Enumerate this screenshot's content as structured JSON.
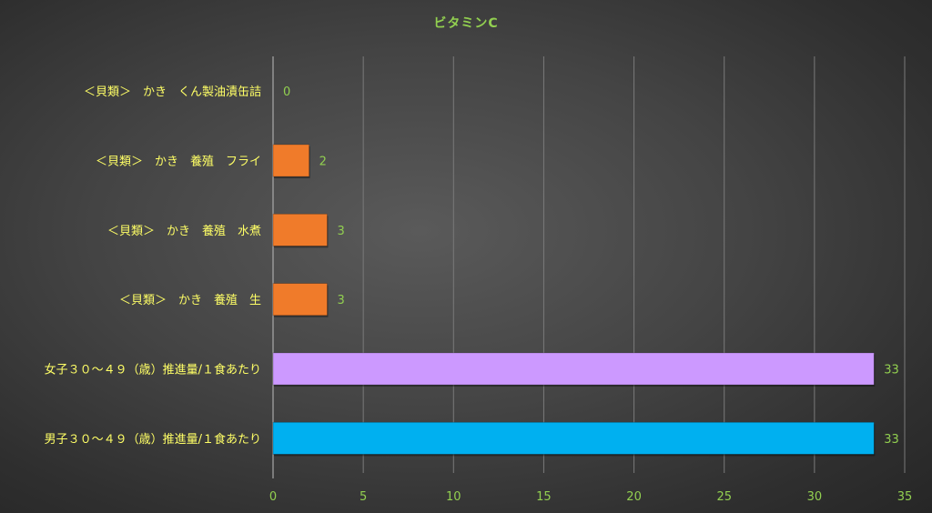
{
  "chart_data": {
    "type": "bar",
    "orientation": "horizontal",
    "title": "ビタミンC",
    "categories": [
      "＜貝類＞　かき　くん製油漬缶詰",
      "＜貝類＞　かき　養殖　フライ",
      "＜貝類＞　かき　養殖　水煮",
      "＜貝類＞　かき　養殖　生",
      "女子３０～４９（歳）推進量/１食あたり",
      "男子３０～４９（歳）推進量/１食あたり"
    ],
    "values": [
      0,
      2,
      3,
      3,
      33.3,
      33.3
    ],
    "data_labels": [
      "0",
      "2",
      "3",
      "3",
      "33",
      "33"
    ],
    "bar_colors": [
      "#F07B2A",
      "#F07B2A",
      "#F07B2A",
      "#F07B2A",
      "#CC99FF",
      "#00B0F0"
    ],
    "xlim": [
      0,
      35
    ],
    "xticks": [
      "0",
      "5",
      "10",
      "15",
      "20",
      "25",
      "30",
      "35"
    ],
    "grid": "vertical",
    "legend": "none"
  },
  "colors": {
    "title": "#92D050",
    "category_label": "#FFFF66",
    "tick_label": "#92D050",
    "data_label": "#92D050",
    "gridline": "#7a7a7a",
    "axis": "#bdbdbd"
  }
}
